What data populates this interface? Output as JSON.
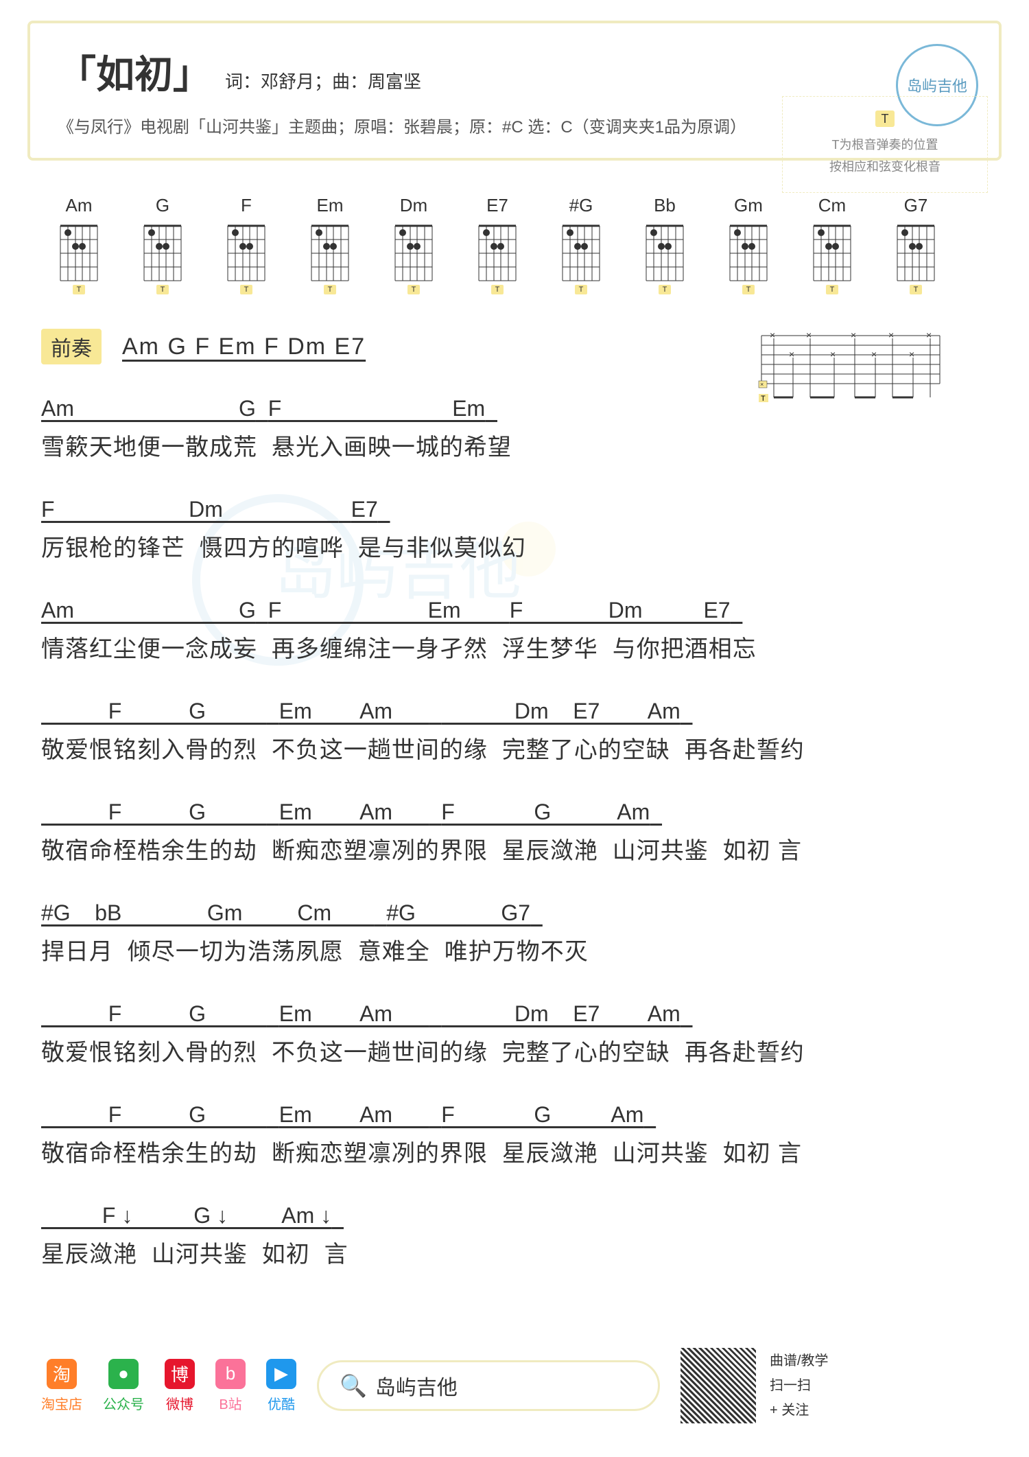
{
  "header": {
    "title": "「如初」",
    "credits": "词：邓舒月；曲：周富坚",
    "subtitle": "《与凤行》电视剧「山河共鉴」主题曲；原唱：张碧晨；原：#C 选：C（变调夹夹1品为原调）",
    "logo": "岛屿吉他"
  },
  "chord_diagrams": [
    {
      "name": "Am"
    },
    {
      "name": "G"
    },
    {
      "name": "F"
    },
    {
      "name": "Em"
    },
    {
      "name": "Dm"
    },
    {
      "name": "E7"
    },
    {
      "name": "#G"
    },
    {
      "name": "Bb"
    },
    {
      "name": "Gm"
    },
    {
      "name": "Cm"
    },
    {
      "name": "G7"
    }
  ],
  "intro": {
    "label": "前奏",
    "chords": "Am  G  F  Em    F  Dm  E7"
  },
  "tip": {
    "t": "T",
    "line1": "T为根音弹奏的位置",
    "line2": "按相应和弦变化根音"
  },
  "verses": [
    {
      "lines": [
        {
          "chord": "Am                           G",
          "lyric_pre": "",
          "lyric": "雪簌天地便一散成荒  "
        },
        {
          "chord": "F                            Em",
          "lyric": "悬光入画映一城的希望"
        }
      ]
    },
    {
      "lines": [
        {
          "chord": "F                      Dm                   ",
          "lyric": "厉银枪的锋芒  慑四方的喧哗  "
        },
        {
          "chord": "E7",
          "lyric": "是与非似莫似幻"
        }
      ]
    },
    {
      "lines": [
        {
          "chord": "Am                           G",
          "lyric": "情落红尘便一念成妄  "
        },
        {
          "chord": "F                        Em      ",
          "lyric": "再多缠绵注一身孑然  "
        },
        {
          "chord": "F              Dm          E7",
          "lyric": "浮生梦华  与你把酒相忘"
        }
      ]
    },
    {
      "lines": [
        {
          "chord": "           F           G          ",
          "lyric": "敬爱恨铭刻入骨的烈  "
        },
        {
          "chord": "Em        Am      ",
          "lyric": "不负这一趟世间的缘  "
        },
        {
          "chord": "            Dm    E7        Am",
          "lyric": "完整了心的空缺  再各赴誓约"
        }
      ]
    },
    {
      "lines": [
        {
          "chord": "           F           G          ",
          "lyric": "敬宿命桎梏余生的劫  "
        },
        {
          "chord": "Em        Am      ",
          "lyric": "断痴恋塑凛冽的界限  "
        },
        {
          "chord": "F             G           Am",
          "lyric": "星辰潋滟  山河共鉴  如初 言"
        }
      ]
    },
    {
      "lines": [
        {
          "chord": "#G    bB              Gm         Cm       ",
          "lyric": "捍日月  倾尽一切为浩荡夙愿  "
        },
        {
          "chord": "#G              G7",
          "lyric": "意难全  唯护万物不灭"
        }
      ]
    },
    {
      "lines": [
        {
          "chord": "           F           G          ",
          "lyric": "敬爱恨铭刻入骨的烈  "
        },
        {
          "chord": "Em        Am      ",
          "lyric": "不负这一趟世间的缘  "
        },
        {
          "chord": "            Dm    E7        Am",
          "lyric": "完整了心的空缺  再各赴誓约"
        }
      ]
    },
    {
      "lines": [
        {
          "chord": "           F           G          ",
          "lyric": "敬宿命桎梏余生的劫  "
        },
        {
          "chord": "Em        Am      ",
          "lyric": "断痴恋塑凛冽的界限  "
        },
        {
          "chord": "F             G          Am",
          "lyric": "星辰潋滟  山河共鉴  如初 言"
        }
      ]
    },
    {
      "lines": [
        {
          "chord": "          F ↓          G ↓         Am ↓",
          "lyric": "星辰潋滟  山河共鉴  如初  言"
        }
      ]
    }
  ],
  "footer": {
    "social": [
      {
        "label": "淘宝店",
        "color": "#ff7e29",
        "icon": "淘"
      },
      {
        "label": "公众号",
        "color": "#2bb24c",
        "icon": "●"
      },
      {
        "label": "微博",
        "color": "#e6162d",
        "icon": "博"
      },
      {
        "label": "B站",
        "color": "#fb7299",
        "icon": "b"
      },
      {
        "label": "优酷",
        "color": "#1f98ed",
        "icon": "▶"
      }
    ],
    "search": "岛屿吉他",
    "qr": {
      "line1": "曲谱/教学",
      "line2": "扫一扫",
      "line3": "+ 关注"
    }
  },
  "colors": {
    "border": "#f0ebc0",
    "highlight": "#f8e896",
    "logo_blue": "#7ab8d8"
  }
}
